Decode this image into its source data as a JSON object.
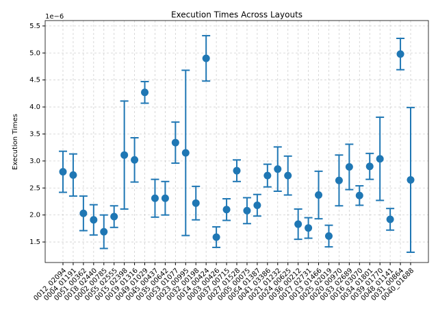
{
  "chart_data": {
    "type": "errorbar",
    "title": "Execution Times Across Layouts",
    "ylabel": "Execution Times",
    "offset_label": "1e−6",
    "categories": [
      "0012_02094",
      "0004_01191",
      "0051_00362",
      "0018_02440",
      "0002_00785",
      "0055_02555",
      "0015_02398",
      "0019_01316",
      "0049_01029",
      "0045_00437",
      "0035_00642",
      "0053_01077",
      "0023_00995",
      "0032_00198",
      "0014_00424",
      "0003_00426",
      "0037_00715",
      "0027_01528",
      "0005_00075",
      "0054_01387",
      "0041_03386",
      "0021_01232",
      "0024_00625",
      "0036_00212",
      "0017_02731",
      "0013_01466",
      "0025_02019",
      "0020_00970",
      "0033_02689",
      "0016_03070",
      "0034_01801",
      "0039_01770",
      "0048_01141",
      "0031_00864",
      "0040_01688"
    ],
    "values": [
      2.8,
      2.74,
      2.03,
      1.91,
      1.69,
      1.97,
      3.11,
      3.02,
      4.27,
      2.31,
      2.31,
      3.34,
      3.15,
      2.22,
      4.9,
      1.59,
      2.1,
      2.82,
      2.08,
      2.18,
      2.73,
      2.85,
      2.73,
      1.83,
      1.76,
      2.37,
      1.61,
      2.64,
      2.89,
      2.36,
      2.9,
      3.04,
      1.92,
      4.98,
      2.65
    ],
    "errors": [
      0.38,
      0.39,
      0.32,
      0.28,
      0.31,
      0.2,
      1.0,
      0.41,
      0.2,
      0.35,
      0.31,
      0.38,
      1.53,
      0.31,
      0.42,
      0.19,
      0.2,
      0.2,
      0.24,
      0.2,
      0.21,
      0.41,
      0.36,
      0.28,
      0.19,
      0.44,
      0.2,
      0.47,
      0.42,
      0.18,
      0.24,
      0.77,
      0.2,
      0.29,
      1.34
    ],
    "color": "#1f77b4",
    "grid": true,
    "ylim": [
      1.12,
      5.6
    ],
    "yticks": [
      {
        "value": 1.5,
        "label": "1.5"
      },
      {
        "value": 2,
        "label": "2.0"
      },
      {
        "value": 2.5,
        "label": "2.5"
      },
      {
        "value": 3,
        "label": "3.0"
      },
      {
        "value": 3.5,
        "label": "3.5"
      },
      {
        "value": 4,
        "label": "4.0"
      },
      {
        "value": 4.5,
        "label": "4.5"
      },
      {
        "value": 5,
        "label": "5.0"
      },
      {
        "value": 5.5,
        "label": "5.5"
      }
    ]
  }
}
